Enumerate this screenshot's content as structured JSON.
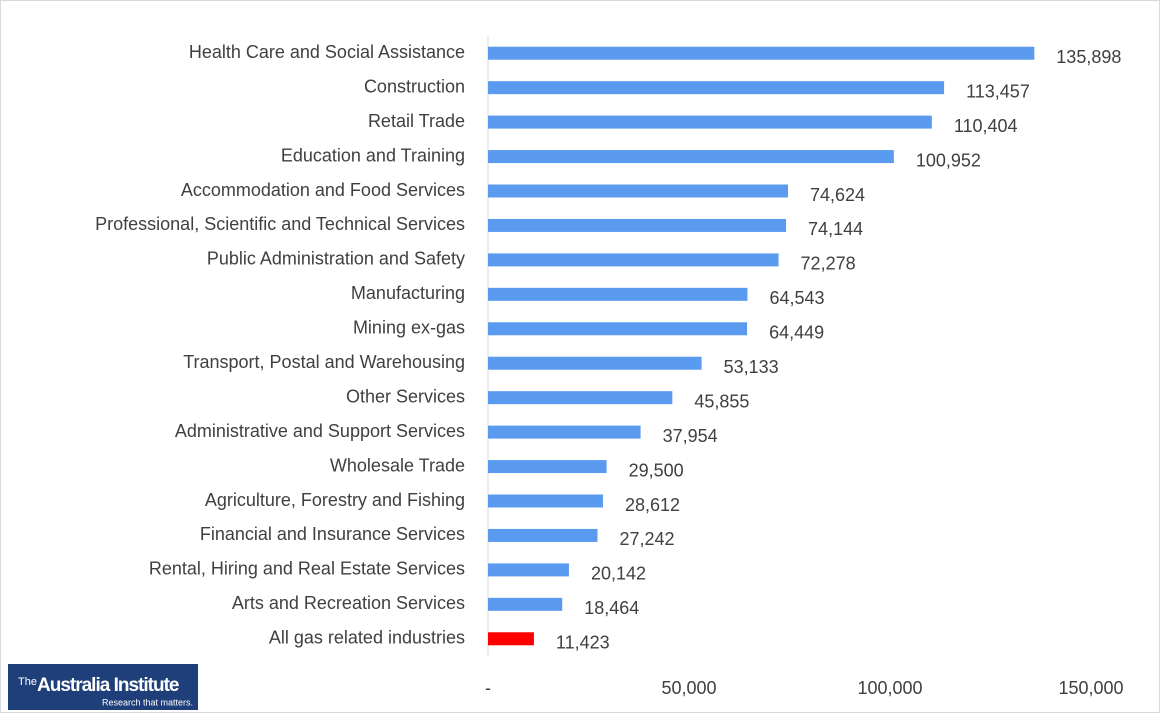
{
  "chart_data": {
    "type": "hbar",
    "categories": [
      "Health Care and Social Assistance",
      "Construction",
      "Retail Trade",
      "Education and Training",
      "Accommodation and Food Services",
      "Professional, Scientific and Technical Services",
      "Public Administration and Safety",
      "Manufacturing",
      "Mining ex-gas",
      "Transport, Postal and Warehousing",
      "Other Services",
      "Administrative and Support Services",
      "Wholesale Trade",
      "Agriculture, Forestry and Fishing",
      "Financial and Insurance Services",
      "Rental, Hiring and Real Estate Services",
      "Arts and Recreation Services",
      "All gas related industries"
    ],
    "values": [
      135898,
      113457,
      110404,
      100952,
      74624,
      74144,
      72278,
      64543,
      64449,
      53133,
      45855,
      37954,
      29500,
      28612,
      27242,
      20142,
      18464,
      11423
    ],
    "value_labels": [
      "135,898",
      "113,457",
      "110,404",
      "100,952",
      "74,624",
      "74,144",
      "72,278",
      "64,543",
      "64,449",
      "53,133",
      "45,855",
      "37,954",
      "29,500",
      "28,612",
      "27,242",
      "20,142",
      "18,464",
      "11,423"
    ],
    "colors": [
      "#5b9bef",
      "#5b9bef",
      "#5b9bef",
      "#5b9bef",
      "#5b9bef",
      "#5b9bef",
      "#5b9bef",
      "#5b9bef",
      "#5b9bef",
      "#5b9bef",
      "#5b9bef",
      "#5b9bef",
      "#5b9bef",
      "#5b9bef",
      "#5b9bef",
      "#5b9bef",
      "#5b9bef",
      "#ff0000"
    ],
    "xlim": [
      0,
      150000
    ],
    "xticks": [
      {
        "value": 0,
        "label": "-"
      },
      {
        "value": 50000,
        "label": "50,000"
      },
      {
        "value": 100000,
        "label": "100,000"
      },
      {
        "value": 150000,
        "label": "150,000"
      }
    ],
    "grid": false
  },
  "logo": {
    "prefix": "The",
    "name": "Australia Institute",
    "tagline": "Research that matters."
  }
}
